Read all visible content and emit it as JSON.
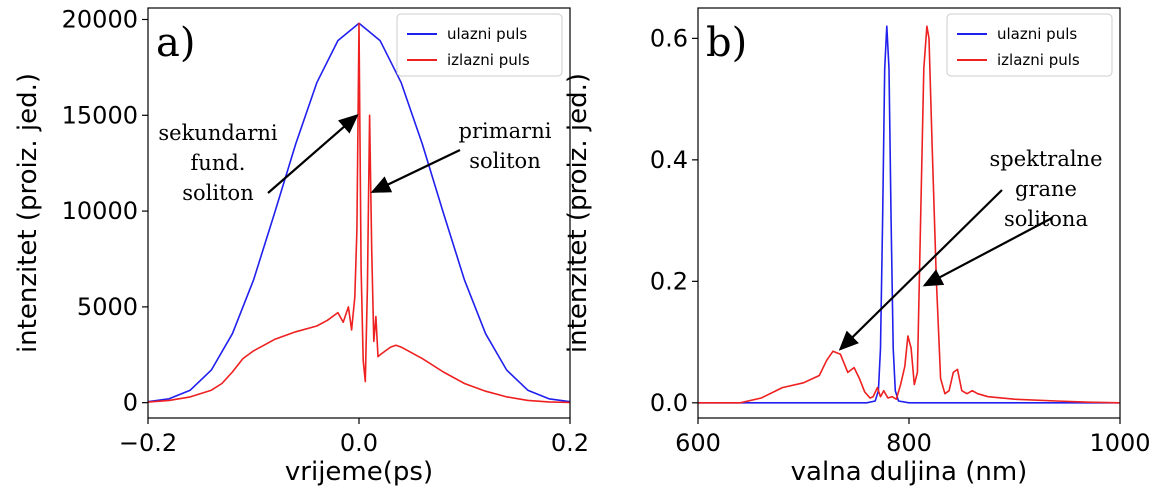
{
  "chart_data": [
    {
      "type": "line",
      "panel_label": "a)",
      "xlabel": "vrijeme(ps)",
      "ylabel": "intenzitet (proiz. jed.)",
      "xlim": [
        -0.2,
        0.2
      ],
      "ylim": [
        -800,
        20600
      ],
      "xticks": [
        -0.2,
        0.0,
        0.2
      ],
      "xtick_labels": [
        "−0.2",
        "0.0",
        "0.2"
      ],
      "yticks": [
        0,
        5000,
        10000,
        15000,
        20000
      ],
      "ytick_labels": [
        "0",
        "5000",
        "10000",
        "15000",
        "20000"
      ],
      "grid": false,
      "legend": "top-right",
      "series": [
        {
          "name": "ulazni puls",
          "color": "#2020ee",
          "x": [
            -0.2,
            -0.18,
            -0.16,
            -0.14,
            -0.12,
            -0.1,
            -0.08,
            -0.06,
            -0.04,
            -0.02,
            0.0,
            0.02,
            0.04,
            0.06,
            0.08,
            0.1,
            0.12,
            0.14,
            0.16,
            0.18,
            0.2
          ],
          "y": [
            50,
            200,
            650,
            1700,
            3600,
            6400,
            9900,
            13500,
            16700,
            18900,
            19800,
            18900,
            16700,
            13500,
            9900,
            6400,
            3600,
            1700,
            650,
            200,
            50
          ]
        },
        {
          "name": "izlazni puls",
          "color": "#ee2020",
          "x": [
            -0.2,
            -0.18,
            -0.16,
            -0.14,
            -0.13,
            -0.12,
            -0.11,
            -0.1,
            -0.08,
            -0.06,
            -0.04,
            -0.03,
            -0.02,
            -0.015,
            -0.01,
            -0.007,
            -0.004,
            -0.002,
            0.0,
            0.002,
            0.004,
            0.006,
            0.008,
            0.01,
            0.012,
            0.014,
            0.016,
            0.018,
            0.02,
            0.025,
            0.03,
            0.035,
            0.04,
            0.06,
            0.08,
            0.1,
            0.12,
            0.14,
            0.16,
            0.18,
            0.2
          ],
          "y": [
            30,
            120,
            300,
            650,
            1000,
            1600,
            2300,
            2700,
            3300,
            3700,
            4000,
            4300,
            4700,
            4200,
            5000,
            3800,
            5500,
            9000,
            19800,
            7000,
            2200,
            1100,
            6000,
            15000,
            8000,
            3200,
            4500,
            2400,
            2500,
            2700,
            2900,
            3000,
            2900,
            2300,
            1600,
            1000,
            600,
            300,
            120,
            40,
            10
          ]
        }
      ],
      "annotations": [
        {
          "text": [
            "sekundarni",
            "fund.",
            "soliton"
          ],
          "points_to": [
            0.0,
            15200
          ]
        },
        {
          "text": [
            "primarni",
            "soliton"
          ],
          "points_to": [
            0.01,
            11000
          ]
        }
      ]
    },
    {
      "type": "line",
      "panel_label": "b)",
      "xlabel": "valna duljina (nm)",
      "ylabel": "intenzitet (proiz. jed.)",
      "xlim": [
        600,
        1000
      ],
      "ylim": [
        -0.025,
        0.65
      ],
      "xticks": [
        600,
        800,
        1000
      ],
      "xtick_labels": [
        "600",
        "800",
        "1000"
      ],
      "yticks": [
        0.0,
        0.2,
        0.4,
        0.6
      ],
      "ytick_labels": [
        "0.0",
        "0.2",
        "0.4",
        "0.6"
      ],
      "grid": false,
      "legend": "top-right",
      "series": [
        {
          "name": "ulazni puls",
          "color": "#2020ee",
          "x": [
            600,
            760,
            768,
            771,
            773,
            775,
            777,
            779,
            781,
            783,
            785,
            787,
            790,
            800,
            1000
          ],
          "y": [
            0,
            0,
            0.003,
            0.02,
            0.09,
            0.3,
            0.55,
            0.62,
            0.55,
            0.3,
            0.09,
            0.02,
            0.003,
            0,
            0
          ]
        },
        {
          "name": "izlazni puls",
          "color": "#ee2020",
          "x": [
            600,
            640,
            660,
            680,
            700,
            715,
            722,
            728,
            735,
            742,
            748,
            753,
            758,
            763,
            766,
            770,
            773,
            776,
            780,
            784,
            788,
            792,
            796,
            799,
            802,
            805,
            808,
            811,
            814,
            817,
            819,
            822,
            826,
            830,
            834,
            838,
            842,
            846,
            850,
            855,
            860,
            865,
            875,
            900,
            940,
            970,
            1000
          ],
          "y": [
            0,
            0,
            0.008,
            0.025,
            0.033,
            0.045,
            0.07,
            0.085,
            0.08,
            0.05,
            0.058,
            0.04,
            0.018,
            0.008,
            0.01,
            0.025,
            0.01,
            0.02,
            0.008,
            0.01,
            0.006,
            0.03,
            0.06,
            0.11,
            0.09,
            0.03,
            0.05,
            0.3,
            0.55,
            0.62,
            0.6,
            0.42,
            0.2,
            0.04,
            0.015,
            0.02,
            0.05,
            0.055,
            0.02,
            0.015,
            0.02,
            0.015,
            0.01,
            0.006,
            0.003,
            0.001,
            0
          ]
        }
      ],
      "annotations": [
        {
          "text": [
            "spektralne",
            "grane",
            "solitona"
          ],
          "points_to": [
            [
              733,
              0.085
            ],
            [
              811,
              0.2
            ]
          ]
        }
      ]
    }
  ]
}
